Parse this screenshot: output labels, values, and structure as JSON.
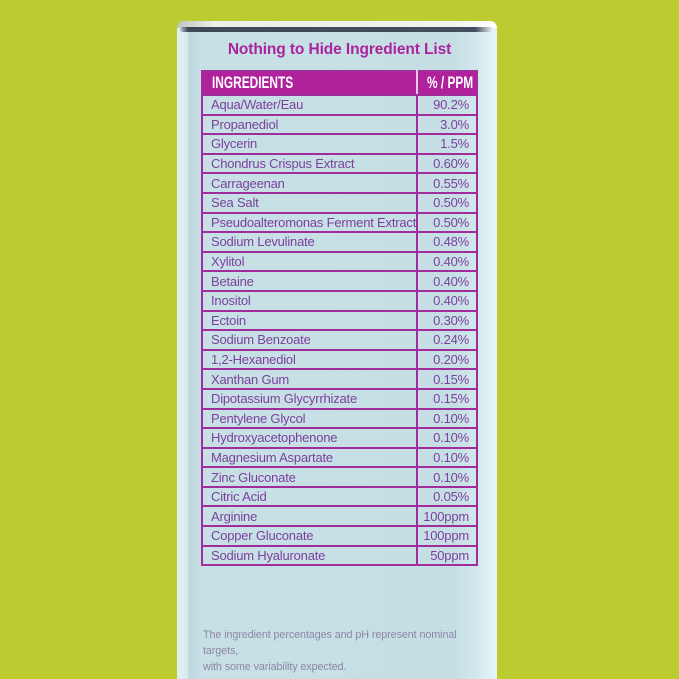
{
  "scene": {
    "background_color": "#bccb2f",
    "box_face_color": "#c7e0e6"
  },
  "package": {
    "title": "Nothing to Hide Ingredient List",
    "title_color": "#ab239c",
    "table": {
      "header": {
        "ingredients_label": "INGREDIENTS",
        "value_label": "% / PPM",
        "background": "#b0219c",
        "text_color": "#ffffff"
      },
      "border_color": "#a12c9c",
      "row_text_color": "#7c3f9c",
      "rows": [
        {
          "name": "Aqua/Water/Eau",
          "value": "90.2%"
        },
        {
          "name": "Propanediol",
          "value": "3.0%"
        },
        {
          "name": "Glycerin",
          "value": "1.5%"
        },
        {
          "name": "Chondrus Crispus Extract",
          "value": "0.60%"
        },
        {
          "name": "Carrageenan",
          "value": "0.55%"
        },
        {
          "name": "Sea Salt",
          "value": "0.50%"
        },
        {
          "name": "Pseudoalteromonas Ferment Extract",
          "value": "0.50%"
        },
        {
          "name": "Sodium Levulinate",
          "value": "0.48%"
        },
        {
          "name": "Xylitol",
          "value": "0.40%"
        },
        {
          "name": "Betaine",
          "value": "0.40%"
        },
        {
          "name": "Inositol",
          "value": "0.40%"
        },
        {
          "name": "Ectoin",
          "value": "0.30%"
        },
        {
          "name": "Sodium Benzoate",
          "value": "0.24%"
        },
        {
          "name": "1,2-Hexanediol",
          "value": "0.20%"
        },
        {
          "name": "Xanthan Gum",
          "value": "0.15%"
        },
        {
          "name": "Dipotassium Glycyrrhizate",
          "value": "0.15%"
        },
        {
          "name": "Pentylene Glycol",
          "value": "0.10%"
        },
        {
          "name": "Hydroxyacetophenone",
          "value": "0.10%"
        },
        {
          "name": "Magnesium Aspartate",
          "value": "0.10%"
        },
        {
          "name": "Zinc Gluconate",
          "value": "0.10%"
        },
        {
          "name": "Citric Acid",
          "value": "0.05%"
        },
        {
          "name": "Arginine",
          "value": "100ppm"
        },
        {
          "name": "Copper Gluconate",
          "value": "100ppm"
        },
        {
          "name": "Sodium Hyaluronate",
          "value": "50ppm"
        }
      ]
    },
    "footnote": {
      "line1": "The ingredient percentages and pH represent nominal targets,",
      "line2": "with some variability expected.",
      "color": "#8d86a8"
    }
  }
}
